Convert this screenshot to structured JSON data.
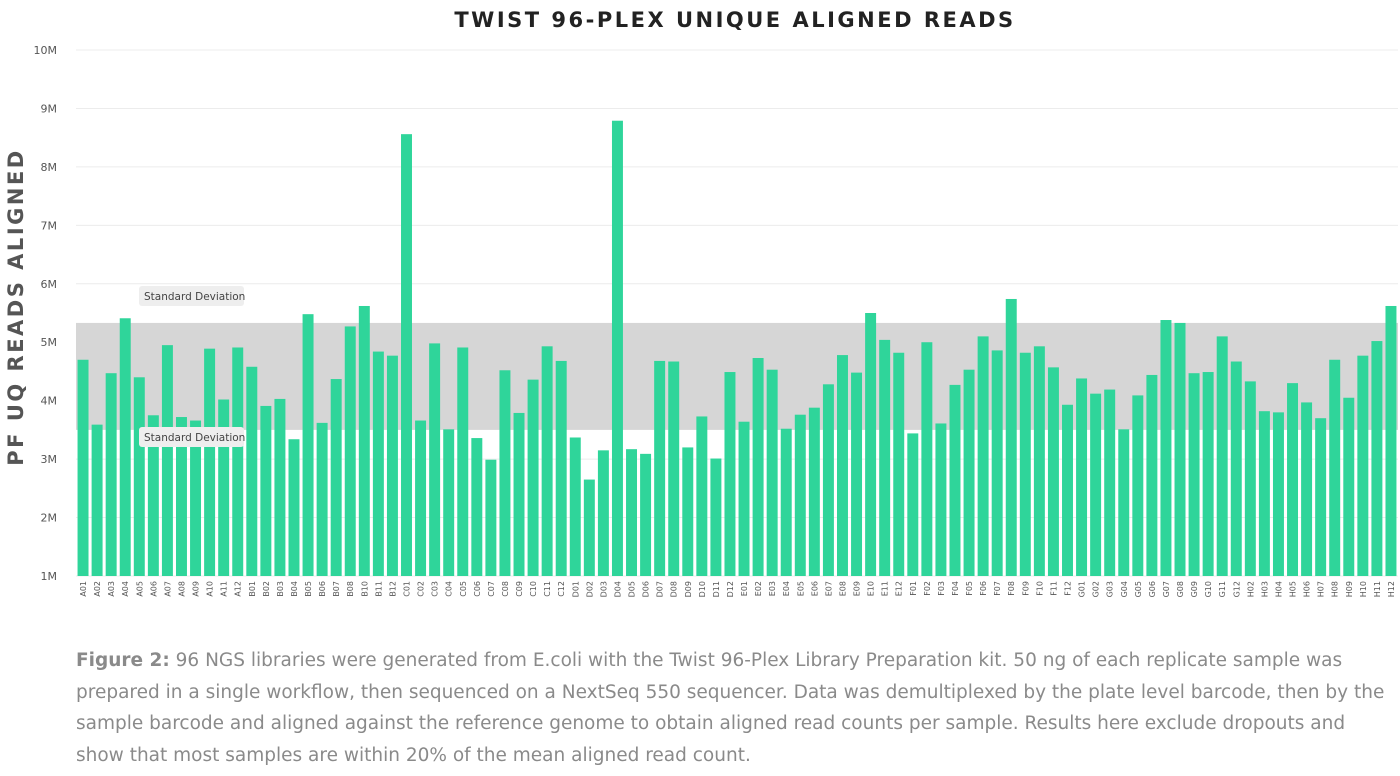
{
  "chart_data": {
    "type": "bar",
    "title": "TWIST 96-PLEX UNIQUE ALIGNED READS",
    "ylabel": "PF UQ READS ALIGNED",
    "xlabel": "",
    "ylim": [
      1000000,
      10000000
    ],
    "yticks": [
      {
        "value": 1000000,
        "label": "1M"
      },
      {
        "value": 2000000,
        "label": "2M"
      },
      {
        "value": 3000000,
        "label": "3M"
      },
      {
        "value": 4000000,
        "label": "4M"
      },
      {
        "value": 5000000,
        "label": "5M"
      },
      {
        "value": 6000000,
        "label": "6M"
      },
      {
        "value": 7000000,
        "label": "7M"
      },
      {
        "value": 8000000,
        "label": "8M"
      },
      {
        "value": 9000000,
        "label": "9M"
      },
      {
        "value": 10000000,
        "label": "10M"
      }
    ],
    "grid": true,
    "categories": [
      "A01",
      "A02",
      "A03",
      "A04",
      "A05",
      "A06",
      "A07",
      "A08",
      "A09",
      "A10",
      "A11",
      "A12",
      "B01",
      "B02",
      "B03",
      "B04",
      "B05",
      "B06",
      "B07",
      "B08",
      "B10",
      "B11",
      "B12",
      "C01",
      "C02",
      "C03",
      "C04",
      "C05",
      "C06",
      "C07",
      "C08",
      "C09",
      "C10",
      "C11",
      "C12",
      "D01",
      "D02",
      "D03",
      "D04",
      "D05",
      "D06",
      "D07",
      "D08",
      "D09",
      "D10",
      "D11",
      "D12",
      "E01",
      "E02",
      "E03",
      "E04",
      "E05",
      "E06",
      "E07",
      "E08",
      "E09",
      "E10",
      "E11",
      "E12",
      "F01",
      "F02",
      "F03",
      "F04",
      "F05",
      "F06",
      "F07",
      "F08",
      "F09",
      "F10",
      "F11",
      "F12",
      "G01",
      "G02",
      "G03",
      "G04",
      "G05",
      "G06",
      "G07",
      "G08",
      "G09",
      "G10",
      "G11",
      "G12",
      "H02",
      "H03",
      "H04",
      "H05",
      "H06",
      "H07",
      "H08",
      "H09",
      "H10",
      "H11",
      "H12"
    ],
    "values": [
      4700000,
      3590000,
      4470000,
      5410000,
      4400000,
      3750000,
      4950000,
      3720000,
      3660000,
      4890000,
      4020000,
      4910000,
      4580000,
      3910000,
      4030000,
      3340000,
      5480000,
      3620000,
      4370000,
      5270000,
      5620000,
      4840000,
      4770000,
      8560000,
      3660000,
      4980000,
      3510000,
      4910000,
      3360000,
      2990000,
      4520000,
      3790000,
      4360000,
      4930000,
      4680000,
      3370000,
      2650000,
      3150000,
      8790000,
      3170000,
      3090000,
      4680000,
      4670000,
      3200000,
      3730000,
      3010000,
      4490000,
      3640000,
      4730000,
      4530000,
      3520000,
      3760000,
      3880000,
      4280000,
      4780000,
      4480000,
      5500000,
      5040000,
      4820000,
      3440000,
      5000000,
      3610000,
      4270000,
      4530000,
      5100000,
      4860000,
      5740000,
      4820000,
      4930000,
      4570000,
      3930000,
      4380000,
      4120000,
      4190000,
      3510000,
      4090000,
      4440000,
      5380000,
      5330000,
      4470000,
      4490000,
      5100000,
      4670000,
      4330000,
      3820000,
      3800000,
      4300000,
      3970000,
      3700000,
      4700000,
      4050000,
      4770000,
      5020000,
      5620000
    ],
    "bar_color": "#2fd59a",
    "std_band": {
      "lower": 3500000,
      "upper": 5330000,
      "color": "#d6d6d6",
      "upper_label": "Standard Deviation",
      "lower_label": "Standard Deviation"
    }
  },
  "caption": {
    "lead": "Figure 2:",
    "text": " 96 NGS libraries were generated from E.coli with the Twist 96-Plex Library Preparation kit. 50 ng of each replicate sample was prepared in a single workflow, then sequenced on a NextSeq 550 sequencer. Data was demultiplexed by the plate level barcode, then by the sample barcode and aligned against the reference genome to obtain aligned read counts per sample. Results here exclude dropouts and show that most samples are within 20% of the mean aligned read count."
  }
}
